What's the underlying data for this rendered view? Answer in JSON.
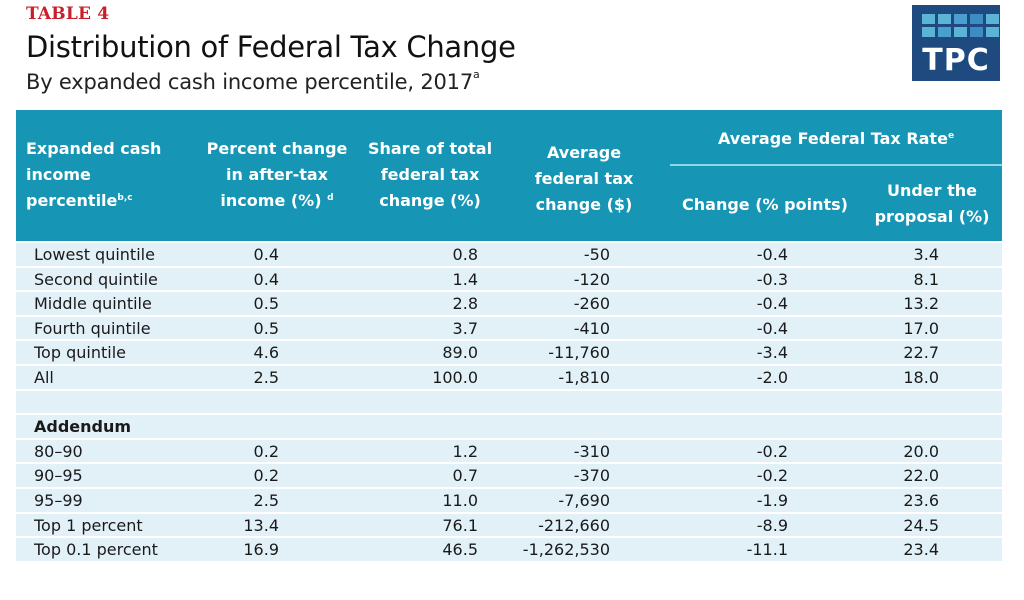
{
  "header": {
    "table_label": "TABLE 4",
    "title": "Distribution of Federal Tax Change",
    "subtitle": "By expanded cash income percentile, 2017",
    "subtitle_note": "a",
    "logo_text": "TPC",
    "logo_cell_colors": [
      "#5bb3d6",
      "#5bb3d6",
      "#4a9fcf",
      "#3d8dc4",
      "#5bb3d6",
      "#5bb3d6",
      "#4a9fcf",
      "#5bb3d6",
      "#3d8dc4",
      "#5bb3d6"
    ]
  },
  "colors": {
    "header_bg": "#1795b5",
    "row_bg": "#e2f1f8",
    "label_red": "#c8202a",
    "logo_bg": "#1e4a80"
  },
  "columns": {
    "col0_lines": [
      "Expanded cash",
      "income",
      "percentile"
    ],
    "col0_note": "b,c",
    "col1_lines": [
      "Percent change",
      "in after-tax",
      "income (%)"
    ],
    "col1_note": "d",
    "col2_lines": [
      "Share of total",
      "federal tax",
      "change (%)"
    ],
    "col3_lines": [
      "Average",
      "federal tax",
      "change ($)"
    ],
    "group_label": "Average Federal Tax Rate",
    "group_note": "e",
    "col4_label": "Change (% points)",
    "col5_lines": [
      "Under the",
      "proposal (%)"
    ]
  },
  "rows": [
    {
      "label": "Lowest quintile",
      "pct_change": "0.4",
      "share": "0.8",
      "avg_change": "-50",
      "rate_change": "-0.4",
      "rate_under": "3.4"
    },
    {
      "label": "Second quintile",
      "pct_change": "0.4",
      "share": "1.4",
      "avg_change": "-120",
      "rate_change": "-0.3",
      "rate_under": "8.1"
    },
    {
      "label": "Middle quintile",
      "pct_change": "0.5",
      "share": "2.8",
      "avg_change": "-260",
      "rate_change": "-0.4",
      "rate_under": "13.2"
    },
    {
      "label": "Fourth quintile",
      "pct_change": "0.5",
      "share": "3.7",
      "avg_change": "-410",
      "rate_change": "-0.4",
      "rate_under": "17.0"
    },
    {
      "label": "Top quintile",
      "pct_change": "4.6",
      "share": "89.0",
      "avg_change": "-11,760",
      "rate_change": "-3.4",
      "rate_under": "22.7"
    },
    {
      "label": "All",
      "pct_change": "2.5",
      "share": "100.0",
      "avg_change": "-1,810",
      "rate_change": "-2.0",
      "rate_under": "18.0"
    }
  ],
  "addendum_label": "Addendum",
  "addendum_rows": [
    {
      "label": "80–90",
      "pct_change": "0.2",
      "share": "1.2",
      "avg_change": "-310",
      "rate_change": "-0.2",
      "rate_under": "20.0"
    },
    {
      "label": "90–95",
      "pct_change": "0.2",
      "share": "0.7",
      "avg_change": "-370",
      "rate_change": "-0.2",
      "rate_under": "22.0"
    },
    {
      "label": "95–99",
      "pct_change": "2.5",
      "share": "11.0",
      "avg_change": "-7,690",
      "rate_change": "-1.9",
      "rate_under": "23.6"
    },
    {
      "label": "Top 1 percent",
      "pct_change": "13.4",
      "share": "76.1",
      "avg_change": "-212,660",
      "rate_change": "-8.9",
      "rate_under": "24.5"
    },
    {
      "label": "Top 0.1 percent",
      "pct_change": "16.9",
      "share": "46.5",
      "avg_change": "-1,262,530",
      "rate_change": "-11.1",
      "rate_under": "23.4"
    }
  ]
}
